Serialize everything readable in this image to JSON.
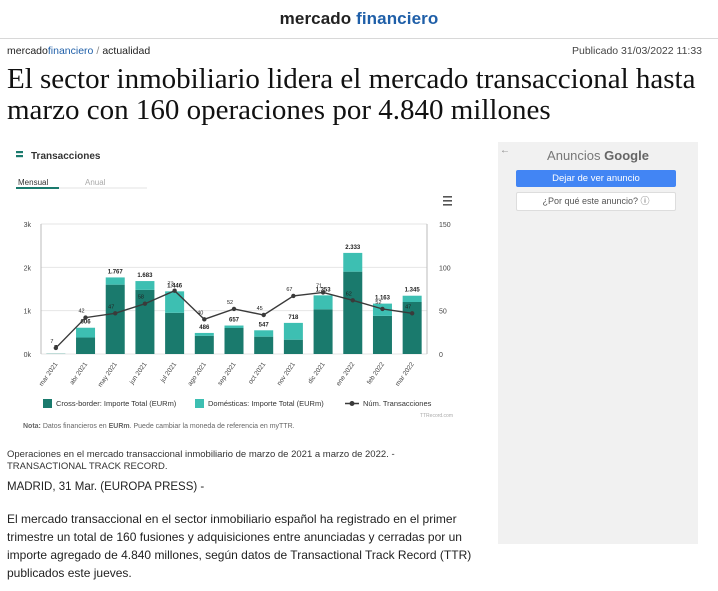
{
  "site": {
    "logo_main": "mercado",
    "logo_accent": "financiero"
  },
  "breadcrumb": {
    "main": "mercado",
    "accent": "financiero",
    "sep": "/",
    "section": "actualidad"
  },
  "published": "Publicado 31/03/2022 11:33",
  "headline": "El sector inmobiliario lidera el mercado transaccional hasta marzo con 160 operaciones por 4.840 millones",
  "caption": {
    "text": "Operaciones en el mercado transaccional inmobiliario de marzo de 2021 a marzo de 2022.  -",
    "credit": "TRANSACTIONAL TRACK RECORD."
  },
  "dateline": "MADRID, 31 Mar. (EUROPA PRESS) -",
  "body": "El mercado transaccional en el sector inmobiliario español ha registrado en el primer trimestre un total de 160 fusiones y adquisiciones entre anunciadas y cerradas por un importe agregado de 4.840 millones, según datos de Transactional Track Record (TTR) publicados este jueves.",
  "ad": {
    "back": "←",
    "label": "Anuncios",
    "brand": "Google",
    "stop": "Dejar de ver anuncio",
    "why": "¿Por qué este anuncio? ⓘ"
  },
  "colors": {
    "cross": "#1a7a6d",
    "dom": "#3dbfb2",
    "line": "#3a3a3a",
    "accent": "#1f5fa8"
  },
  "chart_data": {
    "type": "bar",
    "title": "Transacciones",
    "tabs": [
      "Mensual",
      "Anual"
    ],
    "menu_icon": "hamburger-menu-icon",
    "categories": [
      "mar 2021",
      "abr 2021",
      "may 2021",
      "jun 2021",
      "jul 2021",
      "ago 2021",
      "sep 2021",
      "oct 2021",
      "nov 2021",
      "dic 2021",
      "ene 2022",
      "feb 2022",
      "mar 2022"
    ],
    "totals": [
      "7",
      "606",
      "1.767",
      "1.683",
      "1.446",
      "486",
      "657",
      "547",
      "718",
      "1.353",
      "2.333",
      "1.163",
      "1.345"
    ],
    "counts_labels": [
      "7",
      "42",
      "47",
      "58",
      "73",
      "40",
      "52",
      "45",
      "67",
      "71",
      "62",
      "52",
      "47"
    ],
    "series": [
      {
        "name": "Cross-border: Importe Total (EURm)",
        "values": [
          5,
          380,
          1600,
          1480,
          950,
          420,
          600,
          400,
          330,
          1030,
          1900,
          880,
          1200
        ]
      },
      {
        "name": "Domésticas: Importe Total (EURm)",
        "values": [
          2,
          226,
          167,
          203,
          496,
          66,
          57,
          147,
          388,
          323,
          433,
          283,
          145
        ]
      },
      {
        "name": "Núm. Transacciones",
        "values": [
          7,
          42,
          47,
          58,
          73,
          40,
          52,
          45,
          67,
          71,
          62,
          52,
          47
        ]
      }
    ],
    "y_left": {
      "ticks": [
        "0k",
        "1k",
        "2k",
        "3k"
      ],
      "max": 3000
    },
    "y_right": {
      "ticks": [
        "0",
        "50",
        "100",
        "150"
      ],
      "max": 150
    },
    "source": "TTRecord.com",
    "note_prefix": "Nota:",
    "note": " Datos financieros en ",
    "note_bold": "EURm",
    "note_suffix": ". Puede cambiar la moneda de referencia en myTTR."
  }
}
